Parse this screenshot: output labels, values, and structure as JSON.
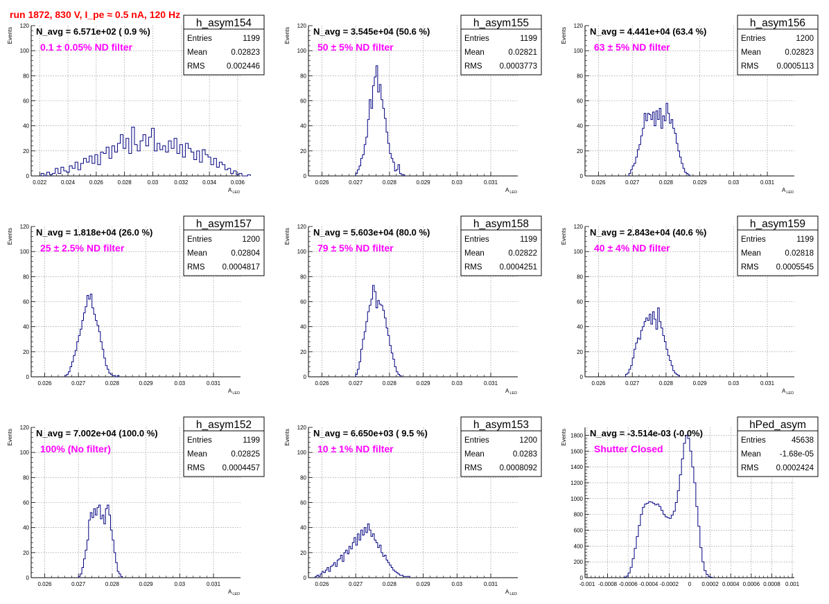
{
  "header": {
    "title": "run 1872,   830 V, I_pe ≈ 0.5 nA, 120 Hz",
    "color": "#ff0000"
  },
  "colors": {
    "histogram": "#000080",
    "annotation": "#ff00ff",
    "grid": "#808080"
  },
  "chart_data": [
    {
      "type": "histogram",
      "name": "h_asym154",
      "navg": "N_avg = 6.571e+02 ( 0.9 %)",
      "filter": "0.1 ± 0.05% ND filter",
      "stats": {
        "Entries": "1199",
        "Mean": "0.02823",
        "RMS": "0.002446"
      },
      "ylabel": "Events",
      "xlabel": "A",
      "xlabel_sub": "LED",
      "xlim": [
        0.0214,
        0.0362
      ],
      "ylim": [
        0,
        120
      ],
      "xticks": [
        0.022,
        0.024,
        0.026,
        0.028,
        0.03,
        0.032,
        0.034,
        0.036
      ],
      "xtick_labels": [
        "0.022",
        "0.024",
        "0.026",
        "0.028",
        "0.03",
        "0.032",
        "0.034",
        "0.036"
      ],
      "yticks": [
        0,
        20,
        40,
        60,
        80,
        100,
        120
      ],
      "grid": true,
      "bins_start": 0.0221,
      "bin_width": 0.0002,
      "counts": [
        2,
        0,
        3,
        1,
        2,
        6,
        2,
        7,
        4,
        3,
        8,
        6,
        11,
        5,
        10,
        14,
        11,
        16,
        10,
        17,
        9,
        19,
        18,
        23,
        14,
        24,
        19,
        26,
        33,
        22,
        30,
        18,
        39,
        25,
        20,
        28,
        33,
        24,
        31,
        38,
        20,
        26,
        21,
        24,
        19,
        28,
        22,
        30,
        18,
        25,
        15,
        26,
        22,
        19,
        13,
        20,
        11,
        21,
        17,
        15,
        9,
        14,
        7,
        11,
        9,
        5,
        6,
        2,
        4,
        1,
        2,
        0,
        0,
        1
      ]
    },
    {
      "type": "histogram",
      "name": "h_asym155",
      "navg": "N_avg = 3.545e+04 (50.6 %)",
      "filter": "50 ± 5% ND filter",
      "stats": {
        "Entries": "1199",
        "Mean": "0.02821",
        "RMS": "0.0003773"
      },
      "ylabel": "Events",
      "xlabel": "A",
      "xlabel_sub": "LED",
      "xlim": [
        0.0256,
        0.0318
      ],
      "ylim": [
        0,
        120
      ],
      "xticks": [
        0.026,
        0.027,
        0.028,
        0.029,
        0.03,
        0.031
      ],
      "xtick_labels": [
        "0.026",
        "0.027",
        "0.028",
        "0.029",
        "0.03",
        "0.031"
      ],
      "yticks": [
        0,
        20,
        40,
        60,
        80,
        100,
        120
      ],
      "grid": true,
      "bins_start": 0.027,
      "bin_width": 5e-05,
      "counts": [
        2,
        5,
        8,
        14,
        17,
        25,
        31,
        45,
        61,
        54,
        72,
        79,
        88,
        67,
        73,
        61,
        54,
        46,
        35,
        26,
        18,
        14,
        11,
        4,
        5,
        9,
        2,
        1,
        1
      ]
    },
    {
      "type": "histogram",
      "name": "h_asym156",
      "navg": "N_avg = 4.441e+04 (63.4 %)",
      "filter": "63 ± 5% ND filter",
      "stats": {
        "Entries": "1200",
        "Mean": "0.02823",
        "RMS": "0.0005113"
      },
      "ylabel": "Events",
      "xlabel": "A",
      "xlabel_sub": "LED",
      "xlim": [
        0.0256,
        0.0318
      ],
      "ylim": [
        0,
        120
      ],
      "xticks": [
        0.026,
        0.027,
        0.028,
        0.029,
        0.03,
        0.031
      ],
      "xtick_labels": [
        "0.026",
        "0.027",
        "0.028",
        "0.029",
        "0.03",
        "0.031"
      ],
      "yticks": [
        0,
        20,
        40,
        60,
        80,
        100,
        120
      ],
      "grid": true,
      "bins_start": 0.0269,
      "bin_width": 5e-05,
      "counts": [
        2,
        5,
        8,
        10,
        15,
        21,
        25,
        32,
        38,
        50,
        44,
        50,
        49,
        45,
        51,
        40,
        52,
        45,
        54,
        38,
        48,
        44,
        58,
        50,
        42,
        45,
        38,
        34,
        26,
        20,
        15,
        10,
        6,
        3,
        2,
        1
      ]
    },
    {
      "type": "histogram",
      "name": "h_asym157",
      "navg": "N_avg = 1.818e+04 (26.0 %)",
      "filter": "25 ± 2.5% ND filter",
      "stats": {
        "Entries": "1200",
        "Mean": "0.02804",
        "RMS": "0.0004817"
      },
      "ylabel": "Events",
      "xlabel": "A",
      "xlabel_sub": "LED",
      "xlim": [
        0.0256,
        0.0318
      ],
      "ylim": [
        0,
        120
      ],
      "xticks": [
        0.026,
        0.027,
        0.028,
        0.029,
        0.03,
        0.031
      ],
      "xtick_labels": [
        "0.026",
        "0.027",
        "0.028",
        "0.029",
        "0.03",
        "0.031"
      ],
      "yticks": [
        0,
        20,
        40,
        60,
        80,
        100,
        120
      ],
      "grid": true,
      "bins_start": 0.0266,
      "bin_width": 5e-05,
      "counts": [
        1,
        2,
        4,
        8,
        12,
        17,
        21,
        28,
        33,
        38,
        45,
        51,
        56,
        65,
        62,
        66,
        55,
        50,
        45,
        41,
        36,
        28,
        22,
        15,
        9,
        6,
        3,
        2,
        1,
        1,
        0,
        1
      ]
    },
    {
      "type": "histogram",
      "name": "h_asym158",
      "navg": "N_avg = 5.603e+04 (80.0 %)",
      "filter": "79 ± 5% ND filter",
      "stats": {
        "Entries": "1199",
        "Mean": "0.02822",
        "RMS": "0.0004251"
      },
      "ylabel": "Events",
      "xlabel": "A",
      "xlabel_sub": "LED",
      "xlim": [
        0.0256,
        0.0318
      ],
      "ylim": [
        0,
        120
      ],
      "xticks": [
        0.026,
        0.027,
        0.028,
        0.029,
        0.03,
        0.031
      ],
      "xtick_labels": [
        "0.026",
        "0.027",
        "0.028",
        "0.029",
        "0.03",
        "0.031"
      ],
      "yticks": [
        0,
        20,
        40,
        60,
        80,
        100,
        120
      ],
      "grid": true,
      "bins_start": 0.027,
      "bin_width": 5e-05,
      "counts": [
        2,
        6,
        12,
        22,
        30,
        36,
        44,
        52,
        57,
        62,
        73,
        68,
        55,
        61,
        58,
        57,
        53,
        47,
        39,
        33,
        25,
        19,
        14,
        8,
        4,
        2,
        1
      ]
    },
    {
      "type": "histogram",
      "name": "h_asym159",
      "navg": "N_avg = 2.843e+04 (40.6 %)",
      "filter": "40 ± 4% ND filter",
      "stats": {
        "Entries": "1199",
        "Mean": "0.02818",
        "RMS": "0.0005545"
      },
      "ylabel": "Events",
      "xlabel": "A",
      "xlabel_sub": "LED",
      "xlim": [
        0.0256,
        0.0318
      ],
      "ylim": [
        0,
        120
      ],
      "xticks": [
        0.026,
        0.027,
        0.028,
        0.029,
        0.03,
        0.031
      ],
      "xtick_labels": [
        "0.026",
        "0.027",
        "0.028",
        "0.029",
        "0.03",
        "0.031"
      ],
      "yticks": [
        0,
        20,
        40,
        60,
        80,
        100,
        120
      ],
      "grid": true,
      "bins_start": 0.0268,
      "bin_width": 5e-05,
      "counts": [
        2,
        3,
        6,
        9,
        15,
        22,
        27,
        31,
        30,
        37,
        40,
        44,
        47,
        45,
        50,
        42,
        52,
        46,
        38,
        55,
        44,
        39,
        33,
        28,
        22,
        17,
        13,
        9,
        5,
        3,
        2,
        1
      ]
    },
    {
      "type": "histogram",
      "name": "h_asym152",
      "navg": "N_avg = 7.002e+04 (100.0 %)",
      "filter": "100% (No filter)",
      "stats": {
        "Entries": "1199",
        "Mean": "0.02825",
        "RMS": "0.0004457"
      },
      "ylabel": "Events",
      "xlabel": "A",
      "xlabel_sub": "LED",
      "xlim": [
        0.0256,
        0.0318
      ],
      "ylim": [
        0,
        120
      ],
      "xticks": [
        0.026,
        0.027,
        0.028,
        0.029,
        0.03,
        0.031
      ],
      "xtick_labels": [
        "0.026",
        "0.027",
        "0.028",
        "0.029",
        "0.03",
        "0.031"
      ],
      "yticks": [
        0,
        20,
        40,
        60,
        80,
        100,
        120
      ],
      "grid": true,
      "bins_start": 0.027,
      "bin_width": 5e-05,
      "counts": [
        1,
        3,
        8,
        15,
        22,
        30,
        46,
        52,
        48,
        55,
        50,
        56,
        58,
        47,
        50,
        43,
        55,
        58,
        50,
        38,
        30,
        20,
        12,
        5,
        3,
        1
      ]
    },
    {
      "type": "histogram",
      "name": "h_asym153",
      "navg": "N_avg = 6.650e+03 ( 9.5 %)",
      "filter": "10 ± 1% ND filter",
      "stats": {
        "Entries": "1200",
        "Mean": "0.0283",
        "RMS": "0.0008092"
      },
      "ylabel": "Events",
      "xlabel": "A",
      "xlabel_sub": "LED",
      "xlim": [
        0.0256,
        0.0318
      ],
      "ylim": [
        0,
        120
      ],
      "xticks": [
        0.026,
        0.027,
        0.028,
        0.029,
        0.03,
        0.031
      ],
      "xtick_labels": [
        "0.026",
        "0.027",
        "0.028",
        "0.029",
        "0.03",
        "0.031"
      ],
      "yticks": [
        0,
        20,
        40,
        60,
        80,
        100,
        120
      ],
      "grid": true,
      "bins_start": 0.0258,
      "bin_width": 5e-05,
      "counts": [
        1,
        2,
        1,
        3,
        5,
        4,
        6,
        8,
        5,
        9,
        10,
        12,
        9,
        14,
        15,
        18,
        13,
        20,
        22,
        19,
        25,
        23,
        28,
        32,
        26,
        35,
        30,
        38,
        34,
        40,
        36,
        43,
        38,
        33,
        35,
        30,
        28,
        24,
        26,
        20,
        17,
        18,
        14,
        12,
        10,
        8,
        6,
        5,
        4,
        3,
        2,
        2,
        1,
        1,
        1,
        1
      ]
    },
    {
      "type": "histogram",
      "name": "hPed_asym",
      "navg": "N_avg = -3.514e-03 (-0.0%)",
      "filter": "Shutter Closed",
      "stats": {
        "Entries": "45638",
        "Mean": "-1.68e-05",
        "RMS": "0.0002424"
      },
      "ylabel": "Events",
      "xlabel": "",
      "xlabel_sub": "",
      "xlim": [
        -0.00102,
        0.00102
      ],
      "ylim": [
        0,
        1900
      ],
      "xticks": [
        -0.001,
        -0.0008,
        -0.0006,
        -0.0004,
        -0.0002,
        0,
        0.0002,
        0.0004,
        0.0006,
        0.0008,
        0.001
      ],
      "xtick_labels": [
        "-0.001",
        "-0.0008",
        "-0.0006",
        "-0.0004",
        "-0.0002",
        "0",
        "0.0002",
        "0.0004",
        "0.0006",
        "0.0008",
        "0.001"
      ],
      "yticks": [
        0,
        200,
        400,
        600,
        800,
        1000,
        1200,
        1400,
        1600,
        1800
      ],
      "grid": true,
      "bins_start": -0.00064,
      "bin_width": 2e-05,
      "counts": [
        5,
        20,
        60,
        130,
        240,
        370,
        520,
        660,
        800,
        890,
        930,
        940,
        960,
        955,
        940,
        920,
        930,
        900,
        850,
        800,
        770,
        760,
        750,
        790,
        840,
        950,
        1100,
        1300,
        1500,
        1700,
        1800,
        1760,
        1600,
        1400,
        1200,
        900,
        650,
        380,
        200,
        90,
        40,
        15,
        5
      ]
    }
  ]
}
